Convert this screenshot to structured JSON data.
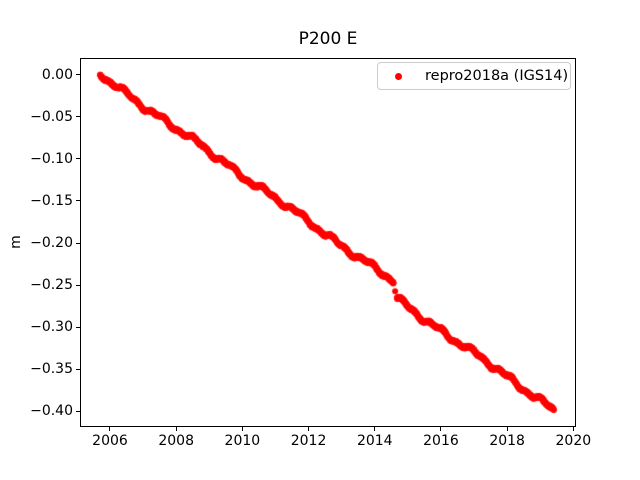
{
  "chart_data": {
    "type": "scatter",
    "title": "P200 E",
    "xlabel": "",
    "ylabel": "m",
    "grid": false,
    "legend_position": "upper right",
    "legend": [
      {
        "label": "repro2018a (IGS14)",
        "marker": "dot",
        "color": "#ff0000"
      }
    ],
    "xlim": [
      2005.094,
      2020.08
    ],
    "ylim": [
      -0.419,
      0.0202
    ],
    "x_ticks": [
      2006,
      2008,
      2010,
      2012,
      2014,
      2016,
      2018,
      2020
    ],
    "x_tick_labels": [
      "2006",
      "2008",
      "2010",
      "2012",
      "2014",
      "2016",
      "2018",
      "2020"
    ],
    "y_ticks": [
      0.0,
      -0.05,
      -0.1,
      -0.15,
      -0.2,
      -0.25,
      -0.3,
      -0.35,
      -0.4
    ],
    "y_tick_labels": [
      "0.00",
      "−0.05",
      "−0.10",
      "−0.15",
      "−0.20",
      "−0.25",
      "−0.30",
      "−0.35",
      "−0.40"
    ],
    "axis_color": "#000000",
    "series": [
      {
        "name": "repro2018a (IGS14)",
        "color": "#ff0000",
        "marker": "dot",
        "marker_size_px": 6,
        "trend_m_per_yr": -0.0278,
        "segments": [
          {
            "x_start": 2005.7,
            "x_end": 2014.57,
            "y_start": 0.0,
            "y_end": -0.246,
            "sample_step_years": 0.006
          },
          {
            "x_start": 2014.67,
            "x_end": 2019.41,
            "y_start": -0.267,
            "y_end": -0.398,
            "sample_step_years": 0.006
          }
        ],
        "isolated_points": [
          {
            "x": 2014.615,
            "y": -0.2575
          }
        ],
        "noise": {
          "amplitude_m": 0.0026,
          "jitter_m": 0.0013,
          "seed": 42
        }
      }
    ]
  }
}
